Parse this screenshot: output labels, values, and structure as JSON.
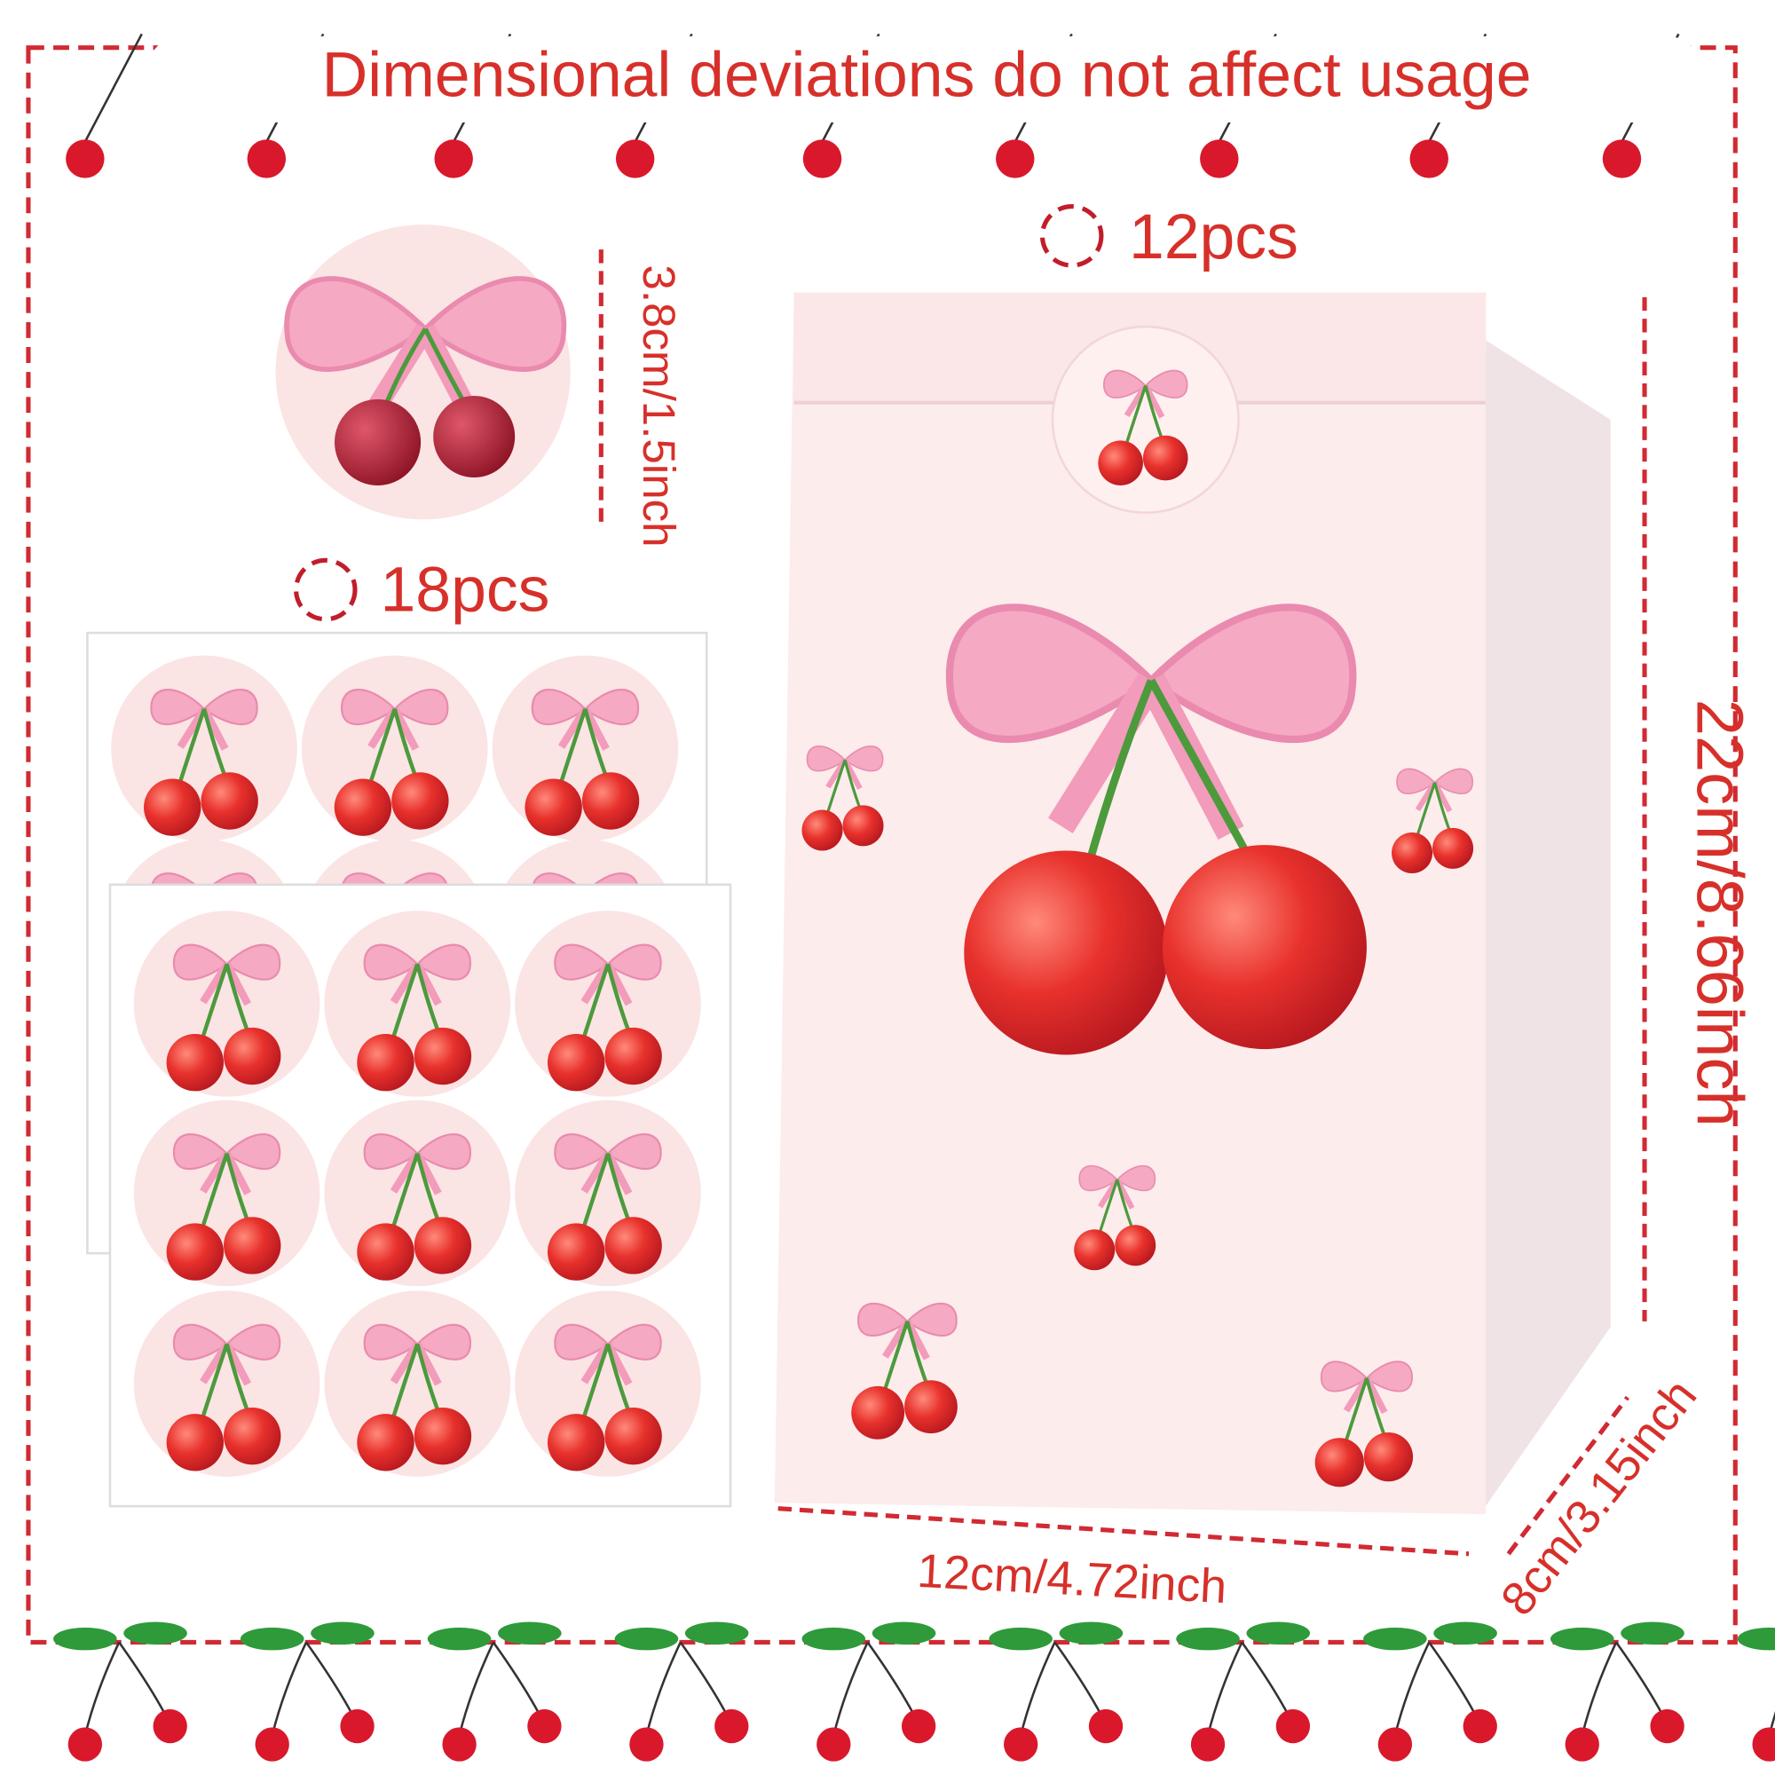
{
  "title": "Dimensional deviations do not affect usage",
  "bag": {
    "count": "12pcs",
    "height": "22cm/8.66inch",
    "width": "12cm/4.72inch",
    "depth": "8cm/3.15inch"
  },
  "sticker": {
    "count": "18pcs",
    "diameter": "3.8cm/1.5inch"
  }
}
